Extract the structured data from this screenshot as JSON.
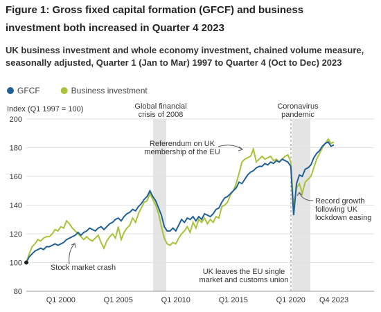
{
  "chart_data": {
    "type": "line",
    "title": "Figure 1: Gross fixed capital formation (GFCF) and business investment both increased in Quarter 4 2023",
    "subtitle": "UK business investment and whole economy investment, chained volume measure, seasonally adjusted, Quarter 1 (Jan to Mar) 1997 to Quarter 4 (Oct to Dec) 2023",
    "y_label": "Index (Q1 1997 = 100)",
    "categories": [
      null,
      null,
      null,
      null,
      null,
      null,
      null,
      null,
      null,
      null,
      null,
      null,
      "Q1 2000",
      null,
      null,
      null,
      null,
      null,
      null,
      null,
      null,
      null,
      null,
      null,
      null,
      null,
      null,
      null,
      null,
      null,
      null,
      null,
      "Q1 2005",
      null,
      null,
      null,
      null,
      null,
      null,
      null,
      null,
      null,
      null,
      null,
      null,
      null,
      null,
      null,
      null,
      null,
      null,
      null,
      "Q1 2010",
      null,
      null,
      null,
      null,
      null,
      null,
      null,
      null,
      null,
      null,
      null,
      null,
      null,
      null,
      null,
      null,
      null,
      null,
      null,
      "Q1 2015",
      null,
      null,
      null,
      null,
      null,
      null,
      null,
      null,
      null,
      null,
      null,
      null,
      null,
      null,
      null,
      null,
      null,
      null,
      null,
      "Q1 2020",
      null,
      null,
      null,
      null,
      null,
      null,
      null,
      null,
      null,
      null,
      null,
      null,
      null,
      null,
      "Q4 2023"
    ],
    "series": [
      {
        "name": "GFCF",
        "color": "#206095",
        "values": [
          100,
          104,
          106,
          108,
          109,
          110,
          109,
          111,
          111,
          112,
          113,
          112,
          113,
          114,
          116,
          117,
          118,
          119,
          121,
          119,
          121,
          122,
          124,
          123,
          122,
          124,
          125,
          123,
          125,
          127,
          128,
          130,
          131,
          129,
          132,
          134,
          135,
          137,
          136,
          139,
          141,
          144,
          146,
          150,
          146,
          143,
          138,
          133,
          125,
          122,
          122,
          124,
          122,
          126,
          130,
          128,
          131,
          130,
          132,
          129,
          132,
          130,
          134,
          133,
          132,
          134,
          137,
          138,
          142,
          145,
          146,
          148,
          150,
          152,
          156,
          155,
          158,
          161,
          163,
          164,
          166,
          167,
          167,
          169,
          168,
          170,
          169,
          171,
          170,
          172,
          171,
          170,
          167,
          133,
          155,
          161,
          160,
          165,
          166,
          168,
          173,
          176,
          178,
          181,
          183,
          184,
          181,
          182
        ]
      },
      {
        "name": "Business investment",
        "color": "#a8c23a",
        "values": [
          100,
          106,
          111,
          113,
          116,
          115,
          117,
          118,
          118,
          120,
          123,
          122,
          125,
          124,
          129,
          127,
          124,
          122,
          120,
          118,
          116,
          118,
          116,
          115,
          117,
          119,
          114,
          110,
          115,
          118,
          120,
          117,
          125,
          116,
          121,
          124,
          126,
          131,
          128,
          134,
          138,
          142,
          143,
          148,
          144,
          140,
          134,
          125,
          117,
          113,
          112,
          114,
          113,
          117,
          120,
          122,
          125,
          121,
          128,
          124,
          130,
          128,
          131,
          127,
          130,
          128,
          132,
          131,
          139,
          140,
          142,
          147,
          150,
          155,
          162,
          170,
          172,
          173,
          174,
          179,
          170,
          172,
          174,
          172,
          173,
          174,
          171,
          172,
          170,
          172,
          174,
          175,
          170,
          138,
          152,
          155,
          148,
          156,
          158,
          160,
          166,
          172,
          176,
          180,
          183,
          186,
          183,
          184
        ]
      }
    ],
    "ylim": [
      80,
      200
    ],
    "yticks": [
      80,
      100,
      120,
      140,
      160,
      180,
      200
    ],
    "grid": true,
    "annotations": [
      {
        "lines": [
          "Global financial",
          "crisis of 2008"
        ]
      },
      {
        "lines": [
          "Coronavirus",
          "pandemic"
        ]
      },
      {
        "lines": [
          "Referendum on UK",
          "membership of the EU"
        ]
      },
      {
        "lines": [
          "Stock market crash"
        ]
      },
      {
        "lines": [
          "UK leaves the EU single",
          "market and customs union"
        ]
      },
      {
        "lines": [
          "Record growth",
          "following UK",
          "lockdown easing"
        ]
      }
    ]
  }
}
